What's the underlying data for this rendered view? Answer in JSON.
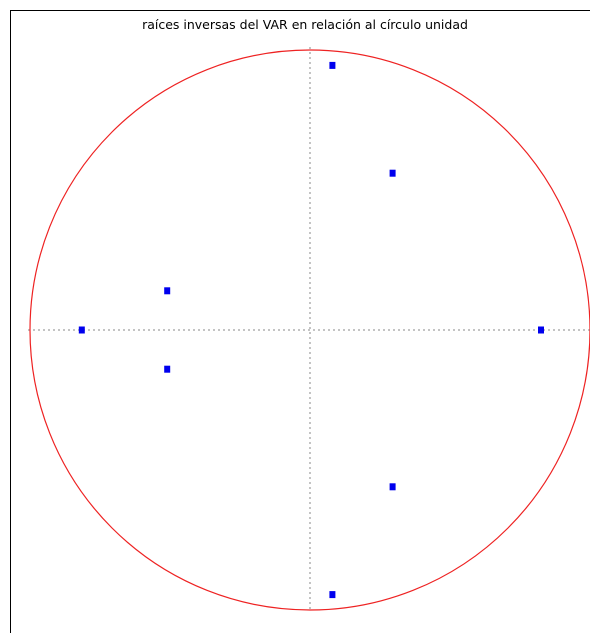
{
  "chart_data": {
    "type": "scatter",
    "title": "raíces inversas del VAR en relación al círculo unidad",
    "xlabel": "",
    "ylabel": "",
    "xlim": [
      -1.0,
      1.0
    ],
    "ylim": [
      -1.0,
      1.0
    ],
    "aspect": "equal",
    "grid": false,
    "legend": "none",
    "reference_lines": {
      "horizontal": 0,
      "vertical": 0,
      "style": "dotted",
      "color": "#888888"
    },
    "unit_circle": {
      "radius": 1.0,
      "color": "#ee2222"
    },
    "series": [
      {
        "points": [
          {
            "x": 0.08,
            "y": 0.945
          },
          {
            "x": 0.295,
            "y": 0.56
          },
          {
            "x": -0.51,
            "y": 0.14
          },
          {
            "x": -0.815,
            "y": 0.0
          },
          {
            "x": 0.825,
            "y": 0.0
          },
          {
            "x": -0.51,
            "y": -0.14
          },
          {
            "x": 0.295,
            "y": -0.56
          },
          {
            "x": 0.08,
            "y": -0.945
          }
        ],
        "color": "#0000ee",
        "marker": "square"
      }
    ]
  }
}
